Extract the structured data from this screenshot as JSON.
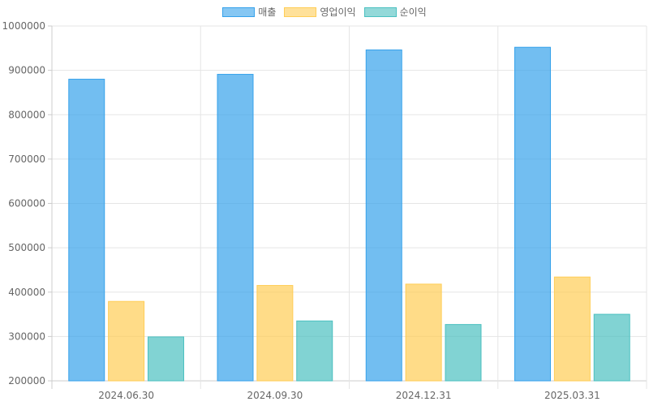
{
  "chart_data": {
    "type": "bar",
    "categories": [
      "2024.06.30",
      "2024.09.30",
      "2024.12.31",
      "2025.03.31"
    ],
    "series": [
      {
        "name": "매출",
        "values": [
          880000,
          891000,
          946000,
          952000
        ],
        "color": "#36a2eb"
      },
      {
        "name": "영업이익",
        "values": [
          379000,
          415000,
          418000,
          434000
        ],
        "color": "#ffcd56"
      },
      {
        "name": "순이익",
        "values": [
          299000,
          335000,
          327000,
          350000
        ],
        "color": "#4bc0c0"
      }
    ],
    "ylim": [
      200000,
      1000000
    ],
    "yticks": [
      200000,
      300000,
      400000,
      500000,
      600000,
      700000,
      800000,
      900000,
      1000000
    ],
    "grid": true,
    "legend_position": "top"
  }
}
